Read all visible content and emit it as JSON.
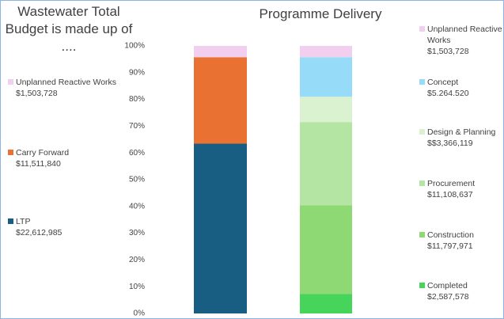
{
  "chart_data": [
    {
      "type": "bar",
      "stacking": "percent",
      "title": "Wastewater Total Budget is made up of ....",
      "ylim": [
        0,
        100
      ],
      "yticks": [
        {
          "value": 0,
          "label": "0%"
        },
        {
          "value": 10,
          "label": "10%"
        },
        {
          "value": 20,
          "label": "20%"
        },
        {
          "value": 30,
          "label": "30%"
        },
        {
          "value": 40,
          "label": "40%"
        },
        {
          "value": 50,
          "label": "50%"
        },
        {
          "value": 60,
          "label": "60%"
        },
        {
          "value": 70,
          "label": "70%"
        },
        {
          "value": 80,
          "label": "80%"
        },
        {
          "value": 90,
          "label": "90%"
        },
        {
          "value": 100,
          "label": "100%"
        }
      ],
      "series": [
        {
          "name": "LTP",
          "color": "#185e82",
          "values": [
            22612985
          ],
          "value_labels": [
            "$22,612,985"
          ]
        },
        {
          "name": "Carry Forward",
          "color": "#e97132",
          "values": [
            11511840
          ],
          "value_labels": [
            "$11,511,840"
          ]
        },
        {
          "name": "Unplanned Reactive Works",
          "color": "#f2cfee",
          "values": [
            1503728
          ],
          "value_labels": [
            "$1,503,728"
          ]
        }
      ]
    },
    {
      "type": "bar",
      "stacking": "percent",
      "title": "Programme Delivery",
      "ylim": [
        0,
        100
      ],
      "series": [
        {
          "name": "Completed",
          "color": "#47d45a",
          "values": [
            2587578
          ],
          "value_labels": [
            "$2,587,578"
          ]
        },
        {
          "name": "Construction",
          "color": "#8ed973",
          "values": [
            11797971
          ],
          "value_labels": [
            "$11,797,971"
          ]
        },
        {
          "name": "Procurement",
          "color": "#b4e5a2",
          "values": [
            11108637
          ],
          "value_labels": [
            "$11,108,637"
          ]
        },
        {
          "name": "Design & Planning",
          "color": "#daf2d0",
          "values": [
            3366119
          ],
          "value_labels": [
            "$$3,366,119"
          ]
        },
        {
          "name": "Concept",
          "color": "#96dcf8",
          "values": [
            5264520
          ],
          "value_labels": [
            "$5.264.520"
          ]
        },
        {
          "name": "Unplanned Reactive Works",
          "color": "#f2cfee",
          "values": [
            1503728
          ],
          "value_labels": [
            "$1,503,728"
          ]
        }
      ]
    }
  ]
}
